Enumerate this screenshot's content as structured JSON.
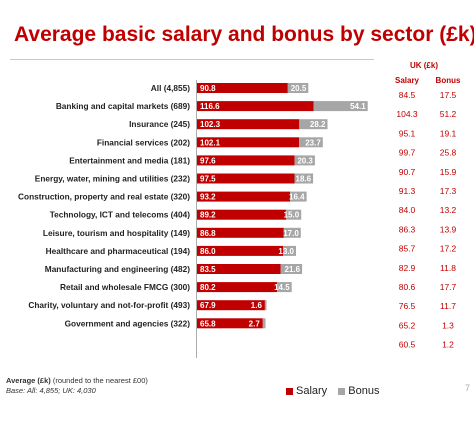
{
  "title": "Average basic salary and bonus by sector (£k)",
  "colors": {
    "salary": "#c00000",
    "bonus": "#a6a6a6"
  },
  "uk_table": {
    "caption": "UK (£k)",
    "col_salary": "Salary",
    "col_bonus": "Bonus"
  },
  "footnote": {
    "line1_bold": "Average (£k)",
    "line1_rest": " (rounded to the nearest £00)",
    "line2": "Base:  All: 4,855; UK: 4,030"
  },
  "legend": {
    "salary": "Salary",
    "bonus": "Bonus"
  },
  "page_number": "7",
  "chart_data": {
    "type": "bar",
    "orientation": "horizontal",
    "stacked": true,
    "title": "Average basic salary and bonus by sector (£k)",
    "categories": [
      "All (4,855)",
      "Banking and capital markets (689)",
      "Insurance (245)",
      "Financial services (202)",
      "Entertainment and media (181)",
      "Energy, water, mining and utilities (232)",
      "Construction, property and real estate (320)",
      "Technology, ICT and telecoms (404)",
      "Leisure, tourism and hospitality (149)",
      "Healthcare and pharmaceutical (194)",
      "Manufacturing and engineering (482)",
      "Retail and wholesale FMCG (300)",
      "Charity, voluntary and not-for-profit (493)",
      "Government and agencies (322)"
    ],
    "series": [
      {
        "name": "Salary",
        "values": [
          90.8,
          116.6,
          102.3,
          102.1,
          97.6,
          97.5,
          93.2,
          89.2,
          86.8,
          86.0,
          83.5,
          80.2,
          67.9,
          65.8
        ]
      },
      {
        "name": "Bonus",
        "values": [
          20.5,
          54.1,
          28.2,
          23.7,
          20.3,
          18.6,
          16.4,
          15.0,
          17.0,
          13.0,
          21.6,
          14.5,
          1.6,
          2.7
        ]
      }
    ],
    "uk_salary": [
      "84.5",
      "104.3",
      "95.1",
      "99.7",
      "90.7",
      "91.3",
      "84.0",
      "86.3",
      "85.7",
      "82.9",
      "80.6",
      "76.5",
      "65.2",
      "60.5"
    ],
    "uk_bonus": [
      "17.5",
      "51.2",
      "19.1",
      "25.8",
      "15.9",
      "17.3",
      "13.2",
      "13.9",
      "17.2",
      "11.8",
      "17.7",
      "11.7",
      "1.3",
      "1.2"
    ],
    "legend_position": "bottom",
    "grid": false
  }
}
